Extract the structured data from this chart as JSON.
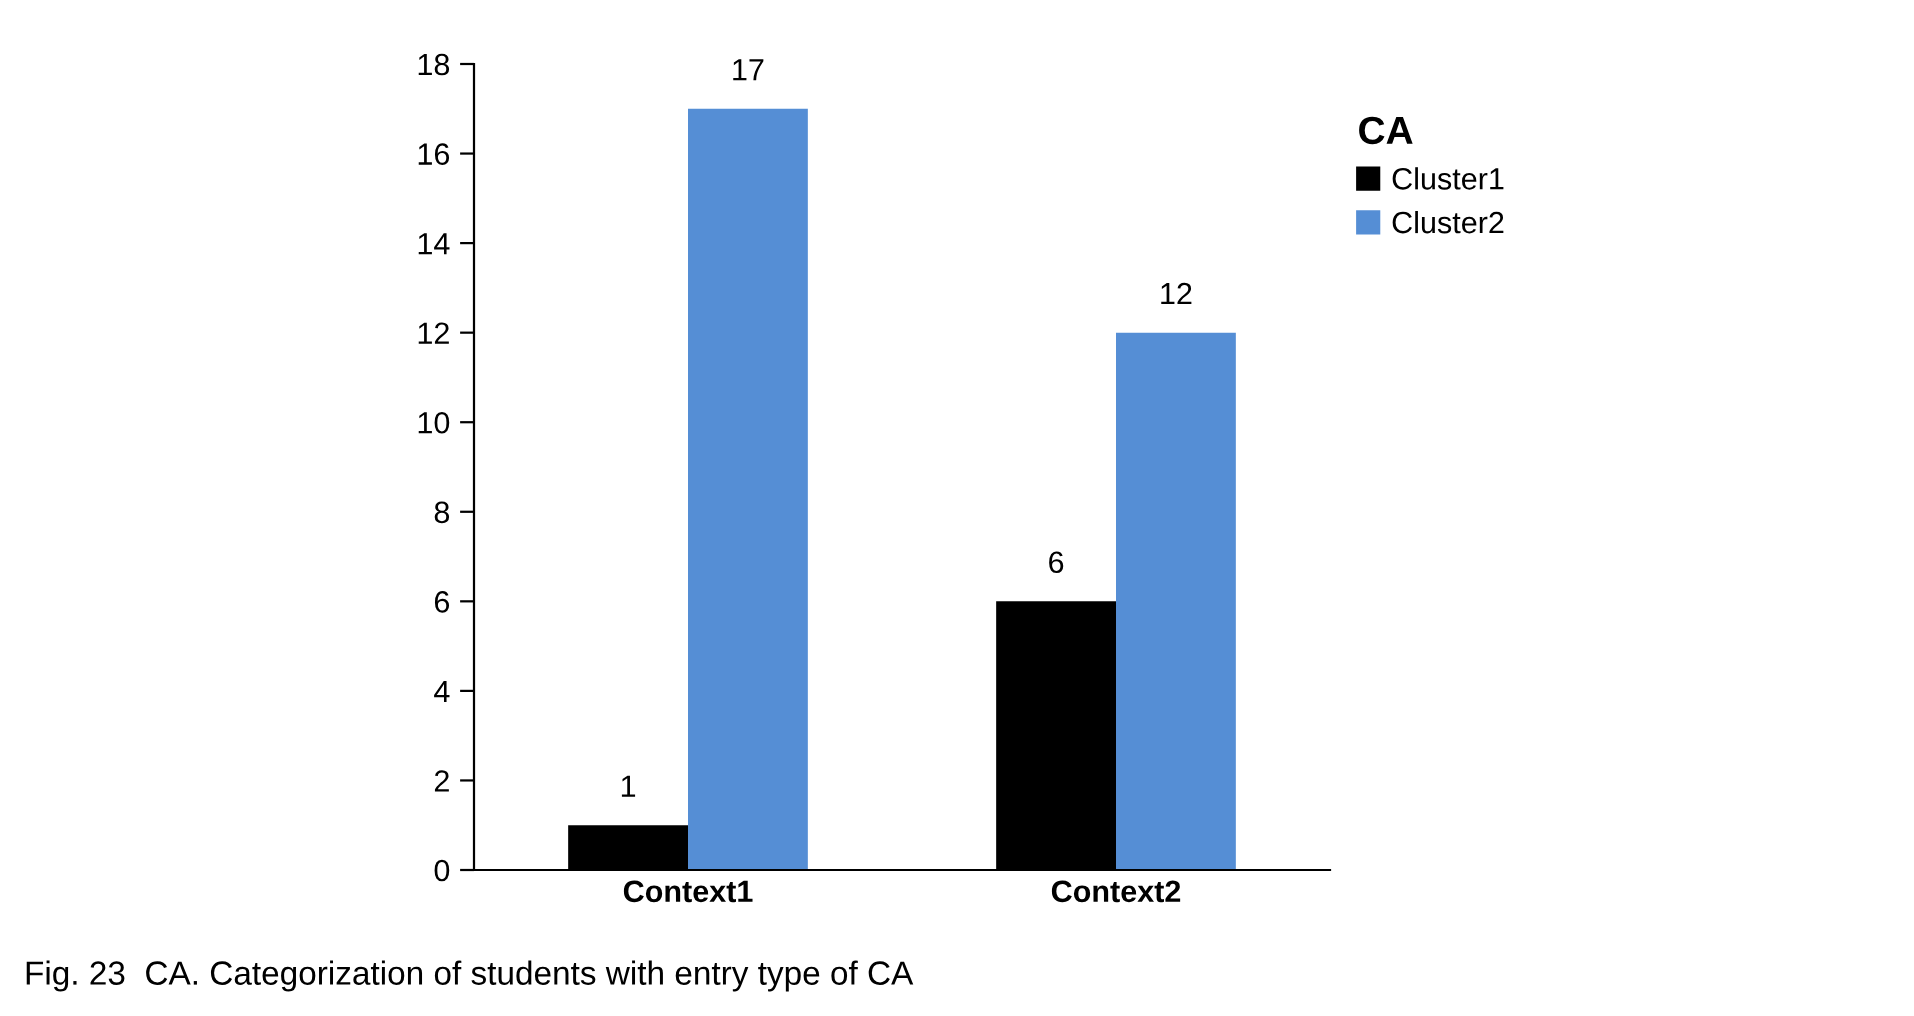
{
  "chart_data": {
    "type": "bar",
    "categories": [
      "Context1",
      "Context2"
    ],
    "series": [
      {
        "name": "Cluster1",
        "color": "#000000",
        "values": [
          1,
          6
        ]
      },
      {
        "name": "Cluster2",
        "color": "#558ed5",
        "values": [
          17,
          12
        ]
      }
    ],
    "legend_title": "CA",
    "legend": "right",
    "ylim": [
      0,
      18
    ],
    "yticks": [
      0,
      2,
      4,
      6,
      8,
      10,
      12,
      14,
      16,
      18
    ],
    "grid": false,
    "data_labels": true,
    "annotations": [
      "Fig. 23  CA. Categorization of students with entry type of CA"
    ]
  }
}
